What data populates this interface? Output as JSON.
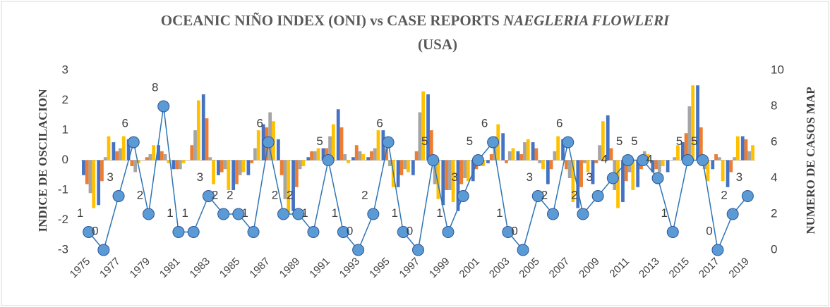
{
  "chart_data": {
    "type": "bar",
    "title": "OCEANIC NIÑO INDEX (ONI) vs  CASE REPORTS",
    "title_italic": "NAEGLERIA FLOWLERI",
    "title_line2": "(USA)",
    "ylabel": "INDICE DE OSCILACION",
    "y2label": "NUMERO DE CASOS MAP",
    "categories": [
      "1975",
      null,
      "1977",
      null,
      "1979",
      null,
      "1981",
      null,
      "1983",
      null,
      "1985",
      null,
      "1987",
      null,
      "1989",
      null,
      "1991",
      null,
      "1993",
      null,
      "1995",
      null,
      "1997",
      null,
      "1999",
      null,
      "2001",
      null,
      "2003",
      null,
      "2005",
      null,
      "2007",
      null,
      "2009",
      null,
      "2011",
      null,
      "2013",
      null,
      "2015",
      null,
      "2017",
      null,
      "2019"
    ],
    "ylim": [
      -3,
      3
    ],
    "yticks": [
      -3,
      -2,
      -1,
      0,
      1,
      2,
      3
    ],
    "y2lim": [
      0,
      10
    ],
    "y2ticks": [
      0,
      2,
      4,
      6,
      8,
      10
    ],
    "grid": false,
    "series": [
      {
        "color": "#4472c4",
        "values": [
          -0.5,
          -1.5,
          0.6,
          0.7,
          0.0,
          0.5,
          -0.3,
          0.0,
          2.2,
          -0.5,
          -1.0,
          -0.5,
          1.2,
          0.7,
          -1.7,
          0.1,
          0.4,
          1.7,
          0.1,
          0.1,
          1.0,
          -0.9,
          -0.5,
          2.2,
          -1.5,
          -1.7,
          -0.7,
          -0.1,
          0.9,
          0.3,
          0.6,
          -0.8,
          0.7,
          -1.6,
          -0.8,
          1.5,
          -1.4,
          -0.9,
          -0.4,
          -0.4,
          0.6,
          2.5,
          -0.3,
          -0.9,
          0.8
        ]
      },
      {
        "color": "#ed7d31",
        "values": [
          -0.8,
          -0.7,
          0.3,
          -0.2,
          0.1,
          0.3,
          -0.3,
          0.5,
          1.4,
          -0.4,
          -0.8,
          -0.1,
          1.1,
          -0.5,
          -0.9,
          0.3,
          0.4,
          1.1,
          0.5,
          0.3,
          0.4,
          -0.5,
          0.3,
          1.0,
          -1.0,
          -0.8,
          -0.3,
          0.2,
          -0.1,
          0.2,
          0.4,
          -0.3,
          -0.3,
          -0.9,
          -0.1,
          0.4,
          -0.7,
          -0.3,
          -0.3,
          0.0,
          0.9,
          1.1,
          0.2,
          -0.4,
          0.7
        ]
      },
      {
        "color": "#a5a5a5",
        "values": [
          -1.1,
          0.1,
          0.4,
          -0.4,
          0.2,
          0.2,
          -0.3,
          1.0,
          0.1,
          -0.3,
          -0.5,
          0.4,
          1.6,
          -1.3,
          -0.3,
          0.3,
          0.8,
          0.2,
          0.3,
          0.4,
          -0.2,
          -0.3,
          1.6,
          -0.8,
          -1.0,
          -0.6,
          -0.1,
          0.8,
          0.3,
          0.6,
          -0.1,
          0.3,
          -0.6,
          -0.1,
          0.5,
          -1.0,
          -0.4,
          0.3,
          -0.4,
          0.1,
          1.8,
          -0.3,
          0.1,
          0.1,
          0.3
        ]
      },
      {
        "color": "#ffc000",
        "values": [
          -1.6,
          0.8,
          0.8,
          -0.1,
          0.5,
          -0.1,
          -0.1,
          2.0,
          -0.8,
          -1.0,
          -0.4,
          1.0,
          1.3,
          -1.8,
          -0.2,
          0.4,
          1.2,
          -0.1,
          0.2,
          1.0,
          -0.9,
          -0.4,
          2.3,
          -1.3,
          -1.4,
          -0.7,
          -0.2,
          1.2,
          0.4,
          0.7,
          -0.3,
          0.8,
          -1.4,
          -0.4,
          1.3,
          -1.6,
          -1.0,
          0.2,
          -0.2,
          0.5,
          2.5,
          -0.7,
          -0.7,
          0.8,
          0.5
        ]
      },
      {
        "type": "line",
        "axis": "y2",
        "color": "#2e75b6",
        "marker_color": "#5b9bd5",
        "values": [
          1,
          0,
          3,
          6,
          2,
          8,
          1,
          1,
          3,
          2,
          2,
          1,
          6,
          2,
          2,
          1,
          5,
          1,
          0,
          2,
          6,
          1,
          0,
          5,
          1,
          3,
          5,
          6,
          1,
          0,
          3,
          2,
          6,
          2,
          3,
          4,
          5,
          5,
          4,
          1,
          5,
          5,
          0,
          2,
          3
        ]
      }
    ]
  }
}
